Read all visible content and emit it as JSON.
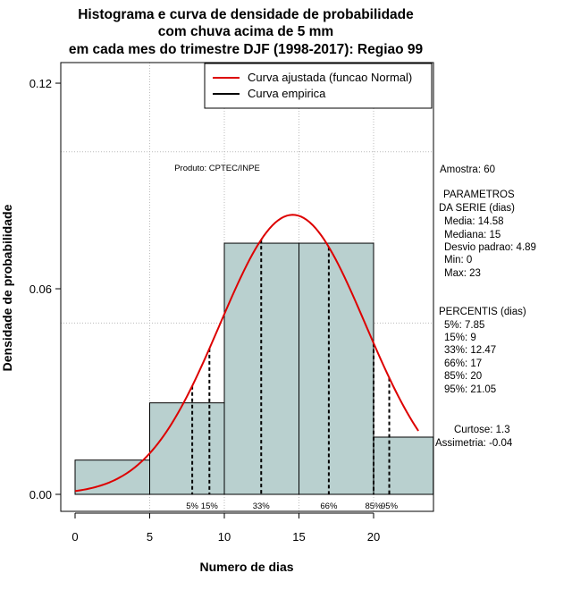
{
  "chart_data": {
    "type": "bar",
    "title_lines": [
      "Histograma e curva de densidade de probabilidade",
      "com chuva acima de 5 mm",
      "em cada mes do trimestre DJF (1998-2017): Regiao 99"
    ],
    "xlabel": "Numero de dias",
    "ylabel": "Densidade de probabilidade",
    "xlim": [
      -1,
      24
    ],
    "ylim": [
      -0.003,
      0.122
    ],
    "x_ticks": [
      0,
      5,
      10,
      15,
      20
    ],
    "y_ticks": [
      0.0,
      0.06,
      0.12
    ],
    "y_tick_labels": [
      "0.00",
      "0.06",
      "0.12"
    ],
    "grid_x": [
      5,
      10,
      15,
      20
    ],
    "grid_y": [
      0.05,
      0.1
    ],
    "histogram": [
      {
        "x0": 0,
        "x1": 5,
        "density": 0.01
      },
      {
        "x0": 5,
        "x1": 10,
        "density": 0.0267
      },
      {
        "x0": 10,
        "x1": 20,
        "density": 0.0733
      },
      {
        "x0": 20,
        "x1": 24,
        "density": 0.0167
      }
    ],
    "empirical_curve_x": [
      10,
      15,
      20
    ],
    "normal_fit": {
      "mean": 14.58,
      "sd": 4.89,
      "x_range": [
        0,
        23
      ],
      "color": "#dd0000"
    },
    "percentile_markers": [
      {
        "label": "5%",
        "x": 7.85
      },
      {
        "label": "15%",
        "x": 9
      },
      {
        "label": "33%",
        "x": 12.47
      },
      {
        "label": "66%",
        "x": 17
      },
      {
        "label": "85%",
        "x": 20
      },
      {
        "label": "95%",
        "x": 21.05
      }
    ],
    "legend": [
      {
        "label": "Curva ajustada (funcao Normal)",
        "color": "#dd0000"
      },
      {
        "label": "Curva empirica",
        "color": "#000000"
      }
    ],
    "legend_position": "top-right",
    "bar_color": "#b9d0cf",
    "annotation": "Produto: CPTEC/INPE"
  },
  "side_panel": {
    "amostra": "Amostra: 60",
    "parametros_title_1": "PARAMETROS",
    "parametros_title_2": "DA SERIE (dias)",
    "media": "Media: 14.58",
    "mediana": "Mediana: 15",
    "desvio": "Desvio padrao: 4.89",
    "min": "Min: 0",
    "max": "Max: 23",
    "percentis_title": "PERCENTIS (dias)",
    "p5": "5%: 7.85",
    "p15": "15%: 9",
    "p33": "33%: 12.47",
    "p66": "66%: 17",
    "p85": "85%: 20",
    "p95": "95%: 21.05",
    "curtose": "Curtose: 1.3",
    "assimetria": "Assimetria: -0.04"
  }
}
